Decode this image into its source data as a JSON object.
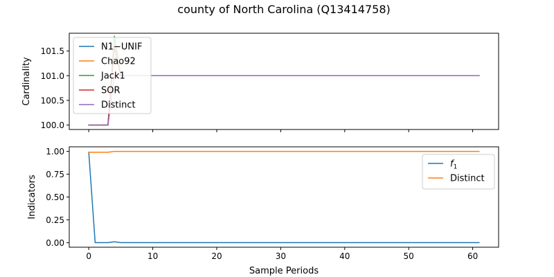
{
  "figure": {
    "title": "county of North Carolina (Q13414758)"
  },
  "chart_data": [
    {
      "type": "line",
      "ylabel": "Cardinality",
      "xlabel": "",
      "xlim": [
        -3.05,
        64.05
      ],
      "ylim": [
        99.91,
        101.86
      ],
      "xticks": [
        0,
        10,
        20,
        30,
        40,
        50,
        60
      ],
      "yticks": [
        100.0,
        100.5,
        101.0,
        101.5
      ],
      "ytick_labels": [
        "100.0",
        "100.5",
        "101.0",
        "101.5"
      ],
      "show_xtick_labels": false,
      "grid": false,
      "legend_position": "top-left",
      "series": [
        {
          "name": "N1−UNIF",
          "color": "#1f77b4",
          "points": [
            [
              0,
              100
            ],
            [
              1,
              100
            ],
            [
              2,
              100
            ],
            [
              3,
              100
            ],
            [
              4,
              101.6
            ],
            [
              5,
              101
            ],
            [
              61,
              101
            ]
          ]
        },
        {
          "name": "Chao92",
          "color": "#ff7f0e",
          "points": [
            [
              0,
              100
            ],
            [
              1,
              100
            ],
            [
              2,
              100
            ],
            [
              3,
              100
            ],
            [
              4,
              101.6
            ],
            [
              5,
              101
            ],
            [
              61,
              101
            ]
          ]
        },
        {
          "name": "Jack1",
          "color": "#2ca02c",
          "points": [
            [
              0,
              100
            ],
            [
              1,
              100
            ],
            [
              2,
              100
            ],
            [
              3,
              100
            ],
            [
              4,
              101.8
            ],
            [
              5,
              101
            ],
            [
              61,
              101
            ]
          ]
        },
        {
          "name": "SOR",
          "color": "#d62728",
          "points": [
            [
              0,
              100
            ],
            [
              1,
              100
            ],
            [
              2,
              100
            ],
            [
              3,
              100
            ],
            [
              4,
              101.6
            ],
            [
              5,
              101
            ],
            [
              61,
              101
            ]
          ]
        },
        {
          "name": "Distinct",
          "color": "#9467bd",
          "points": [
            [
              0,
              100
            ],
            [
              1,
              100
            ],
            [
              2,
              100
            ],
            [
              3,
              100
            ],
            [
              4,
              101
            ],
            [
              5,
              101
            ],
            [
              61,
              101
            ]
          ]
        }
      ]
    },
    {
      "type": "line",
      "ylabel": "Indicators",
      "xlabel": "Sample Periods",
      "xlim": [
        -3.05,
        64.05
      ],
      "ylim": [
        -0.05,
        1.05
      ],
      "xticks": [
        0,
        10,
        20,
        30,
        40,
        50,
        60
      ],
      "xtick_labels": [
        "0",
        "10",
        "20",
        "30",
        "40",
        "50",
        "60"
      ],
      "yticks": [
        0.0,
        0.25,
        0.5,
        0.75,
        1.0
      ],
      "ytick_labels": [
        "0.00",
        "0.25",
        "0.50",
        "0.75",
        "1.00"
      ],
      "show_xtick_labels": true,
      "grid": false,
      "legend_position": "upper-right",
      "series": [
        {
          "name": "f1",
          "name_main": "f",
          "name_sub": "1",
          "color": "#1f77b4",
          "points": [
            [
              0,
              0.99
            ],
            [
              1,
              0
            ],
            [
              2,
              0
            ],
            [
              3,
              0
            ],
            [
              4,
              0.01
            ],
            [
              5,
              0
            ],
            [
              61,
              0
            ]
          ]
        },
        {
          "name": "Distinct",
          "color": "#ff7f0e",
          "points": [
            [
              0,
              0.99
            ],
            [
              1,
              0.99
            ],
            [
              2,
              0.99
            ],
            [
              3,
              0.99
            ],
            [
              4,
              1.0
            ],
            [
              5,
              1.0
            ],
            [
              61,
              1.0
            ]
          ]
        }
      ]
    }
  ]
}
